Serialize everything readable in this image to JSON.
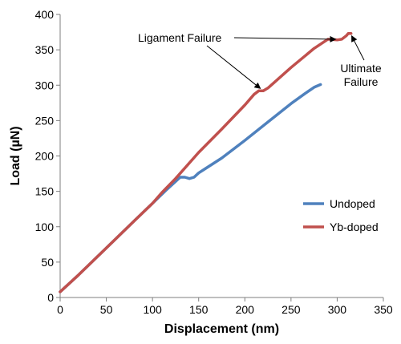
{
  "chart_data": {
    "type": "line",
    "title": "",
    "xlabel": "Displacement (nm)",
    "ylabel": "Load (µN)",
    "xlim": [
      0,
      350
    ],
    "ylim": [
      0,
      400
    ],
    "xticks": [
      0,
      50,
      100,
      150,
      200,
      250,
      300,
      350
    ],
    "yticks": [
      0,
      50,
      100,
      150,
      200,
      250,
      300,
      350,
      400
    ],
    "grid": false,
    "legend_position": "right-middle",
    "series": [
      {
        "name": "Undoped",
        "color": "#4F81BD",
        "x": [
          0,
          20,
          50,
          80,
          100,
          115,
          125,
          130,
          135,
          140,
          145,
          150,
          175,
          200,
          225,
          250,
          265,
          275,
          282
        ],
        "y": [
          8,
          32,
          70,
          108,
          133,
          152,
          164,
          170,
          170,
          168,
          170,
          176,
          197,
          222,
          248,
          274,
          288,
          297,
          301
        ]
      },
      {
        "name": "Yb-doped",
        "color": "#C0504D",
        "x": [
          0,
          20,
          50,
          80,
          100,
          110,
          125,
          150,
          175,
          200,
          210,
          215,
          220,
          225,
          250,
          275,
          290,
          300,
          305,
          310,
          312,
          315
        ],
        "y": [
          8,
          32,
          70,
          108,
          133,
          148,
          168,
          205,
          238,
          272,
          287,
          292,
          292,
          296,
          325,
          352,
          365,
          364,
          365,
          370,
          373,
          373
        ]
      }
    ],
    "annotations": [
      {
        "text": "Ligament Failure",
        "targets": [
          [
            215,
            292
          ],
          [
            300,
            366
          ]
        ]
      },
      {
        "text": "Ultimate\nFailure",
        "targets": [
          [
            314,
            373
          ]
        ]
      }
    ]
  }
}
